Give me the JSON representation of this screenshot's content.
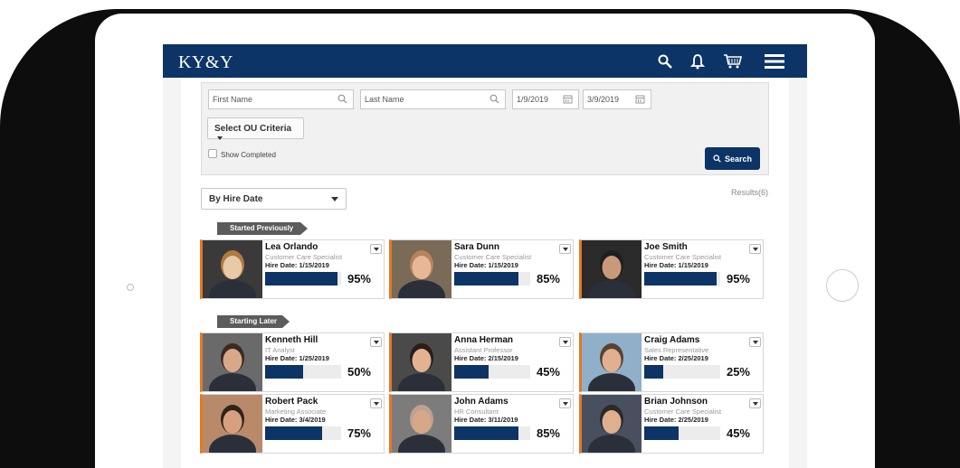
{
  "app": {
    "brand": "KY&Y"
  },
  "navbar": {
    "icons": [
      "search-icon",
      "bell-icon",
      "cart-icon",
      "menu-icon"
    ]
  },
  "filters": {
    "first_name_placeholder": "First Name",
    "last_name_placeholder": "Last Name",
    "start_date": "1/9/2019",
    "end_date": "3/9/2019",
    "ou_label": "Select OU Criteria",
    "show_completed_label": "Show Completed",
    "search_label": "Search"
  },
  "sort": {
    "selected": "By Hire Date"
  },
  "results_label": "Results(6)",
  "sections": [
    {
      "label": "Started Previously"
    },
    {
      "label": "Starting Later"
    }
  ],
  "employees": [
    {
      "name": "Lea Orlando",
      "role": "Customer Care Specialist",
      "hire": "Hire Date: 1/15/2019",
      "progress": 95,
      "pct": "95%"
    },
    {
      "name": "Sara  Dunn",
      "role": "Customer Care Specialist",
      "hire": "Hire Date: 1/15/2019",
      "progress": 85,
      "pct": "85%"
    },
    {
      "name": "Joe Smith",
      "role": "Customer Care Specialist",
      "hire": "Hire Date: 1/15/2019",
      "progress": 95,
      "pct": "95%"
    },
    {
      "name": "Kenneth Hill",
      "role": "IT Analyst",
      "hire": "Hire Date: 1/25/2019",
      "progress": 50,
      "pct": "50%"
    },
    {
      "name": "Anna Herman",
      "role": "Assistant Professor",
      "hire": "Hire Date: 2/15/2019",
      "progress": 45,
      "pct": "45%"
    },
    {
      "name": "Craig Adams",
      "role": "Sales Representative",
      "hire": "Hire Date: 2/25/2019",
      "progress": 25,
      "pct": "25%"
    },
    {
      "name": "Robert Pack",
      "role": "Marketing Associate",
      "hire": "Hire Date: 3/4/2019",
      "progress": 75,
      "pct": "75%"
    },
    {
      "name": "John Adams",
      "role": "HR Consultant",
      "hire": "Hire Date: 3/11/2019",
      "progress": 85,
      "pct": "85%"
    },
    {
      "name": "Brian Johnson",
      "role": "Customer Care Specialist",
      "hire": "Hire Date: 2/25/2019",
      "progress": 45,
      "pct": "45%"
    }
  ],
  "colors": {
    "navy": "#0c3466",
    "accent": "#e87722"
  }
}
